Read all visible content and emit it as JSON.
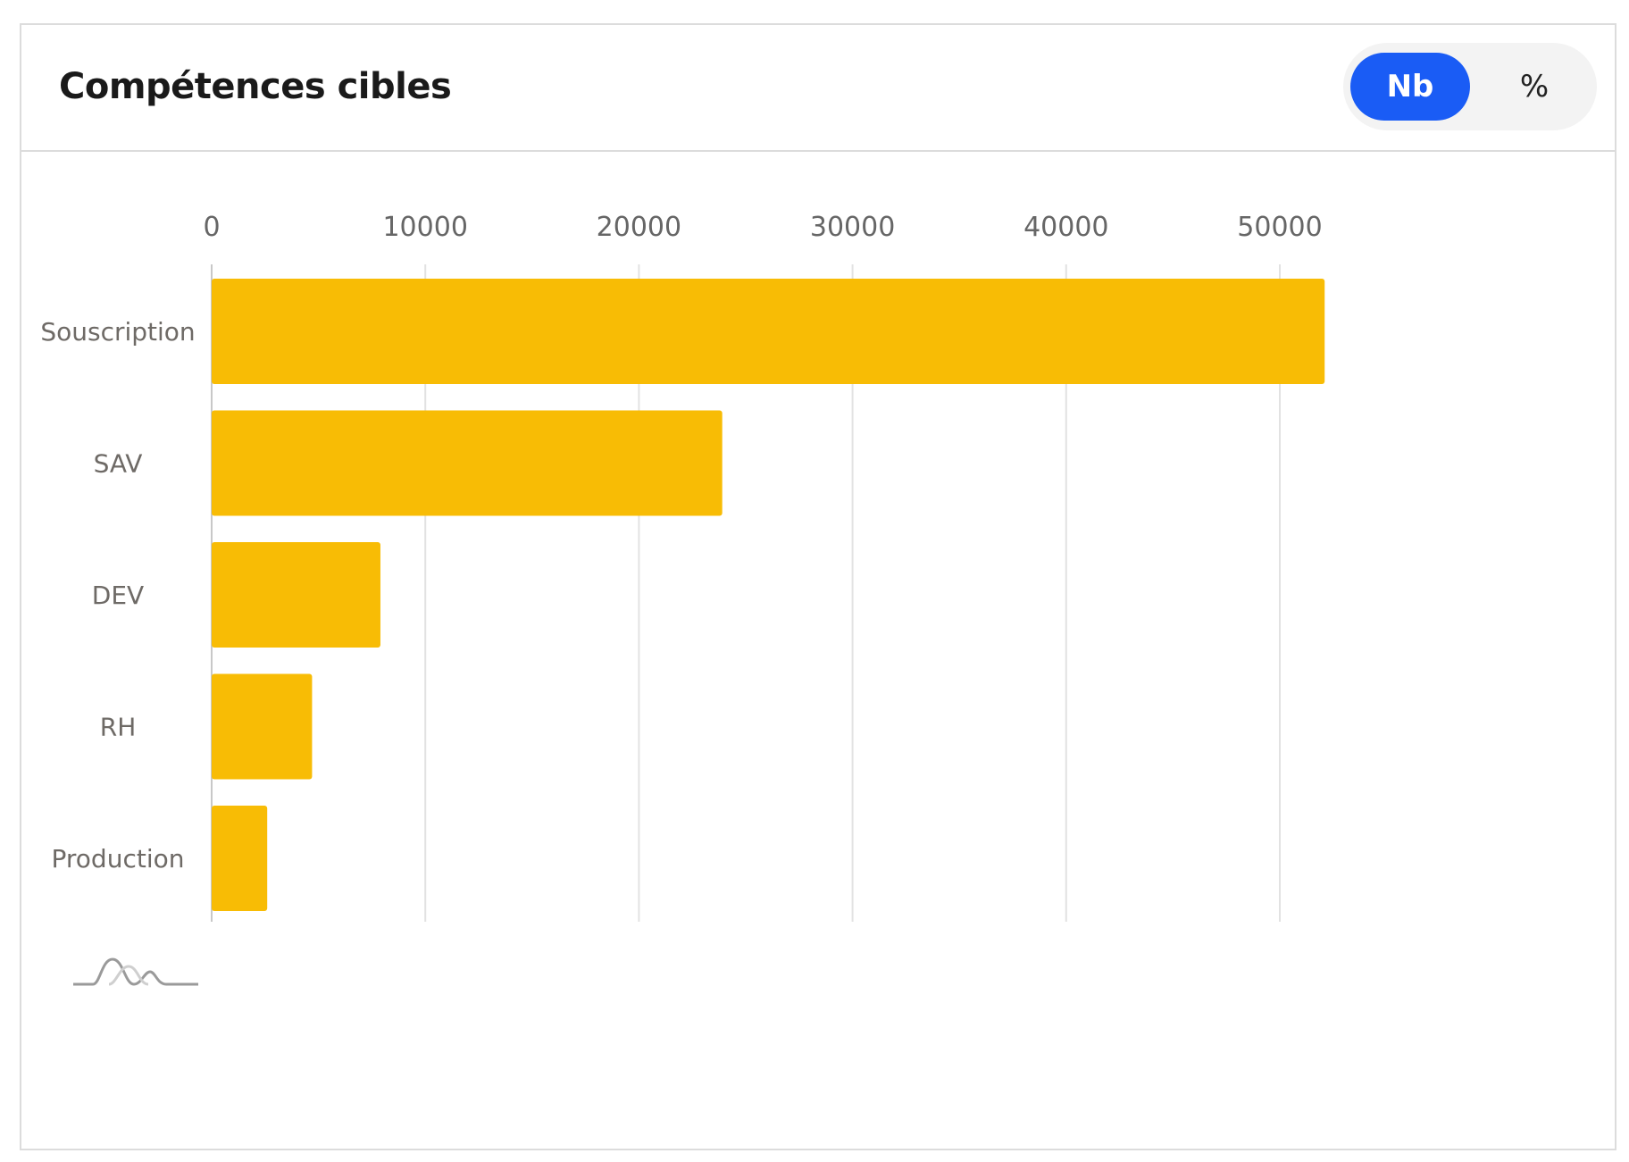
{
  "card": {
    "title": "Compétences cibles"
  },
  "toggle": {
    "options": [
      {
        "label": "Nb",
        "active": true
      },
      {
        "label": "%",
        "active": false
      }
    ],
    "active_color": "#1a5cf5",
    "active_text_color": "#ffffff",
    "inactive_text_color": "#222222"
  },
  "colors": {
    "bar": "#F8BC05",
    "grid": "#e2e2e2",
    "axis": "#c8c8c8"
  },
  "chart_data": {
    "type": "bar",
    "orientation": "horizontal",
    "title": "",
    "xlabel": "",
    "ylabel": "",
    "categories": [
      "Souscription",
      "SAV",
      "DEV",
      "RH",
      "Production"
    ],
    "values": [
      52100,
      23900,
      7900,
      4700,
      2600
    ],
    "xlim": [
      0,
      52500
    ],
    "x_ticks": [
      0,
      10000,
      20000,
      30000,
      40000,
      50000
    ],
    "x_axis_position": "top",
    "grid": true,
    "legend": "none"
  },
  "logo": {
    "icon": "wave-logo-icon"
  }
}
